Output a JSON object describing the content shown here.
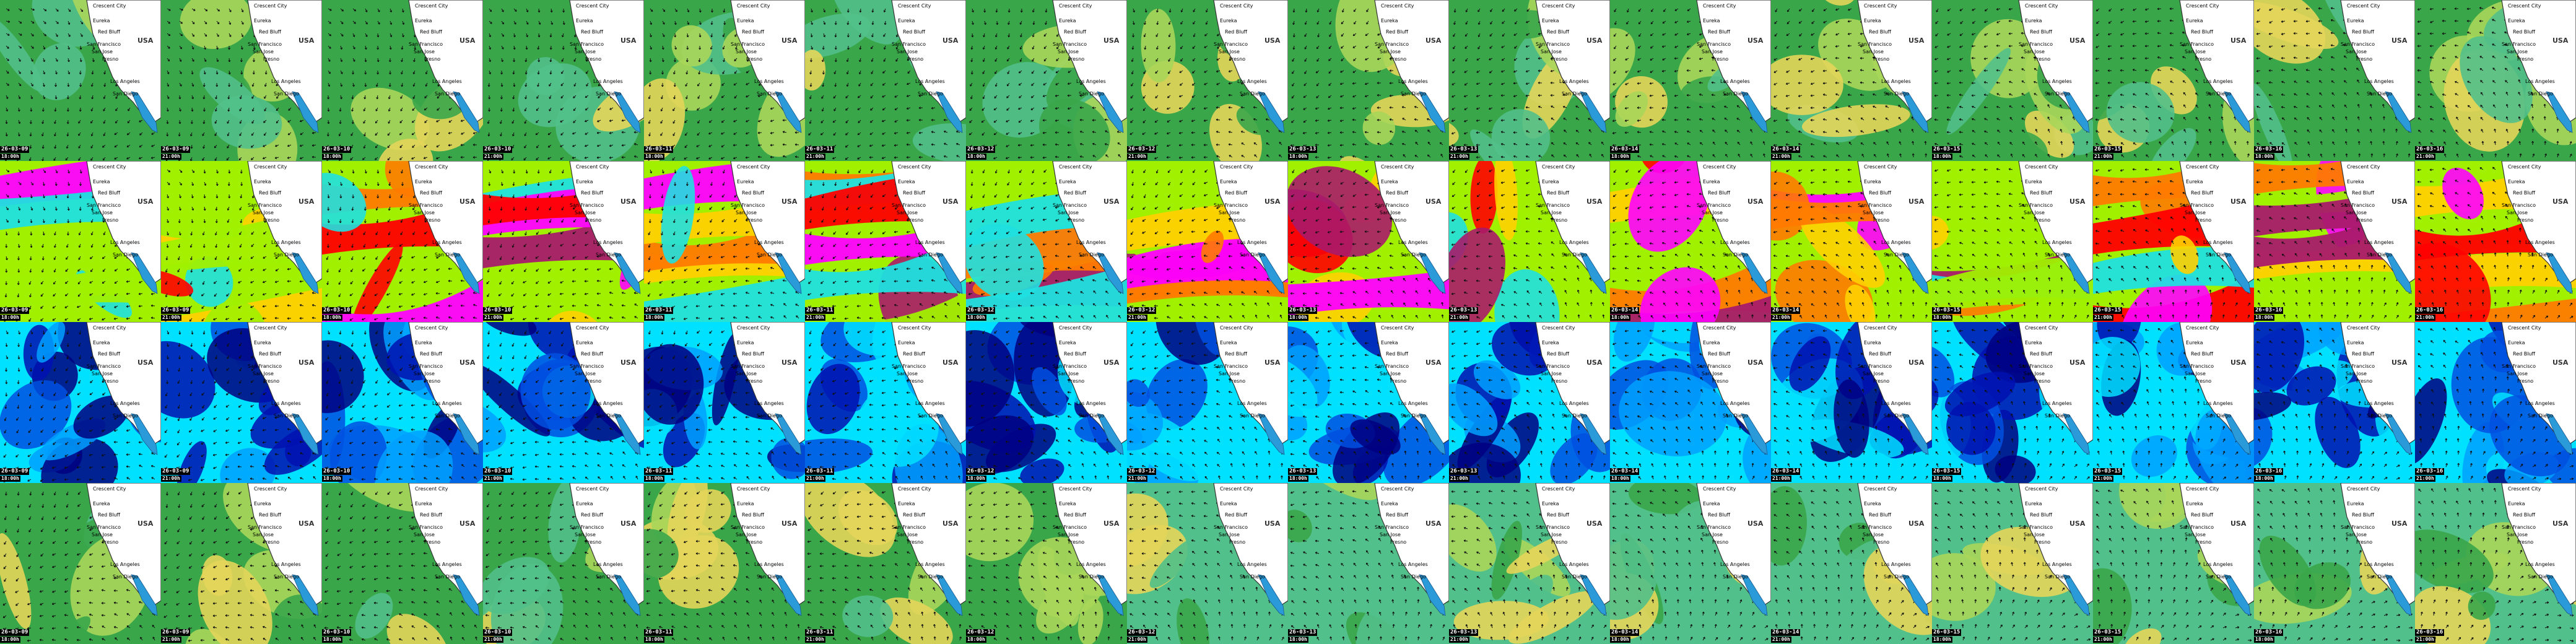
{
  "mosaic": {
    "columns": 16,
    "rows": 4,
    "frames": [
      {
        "date": "26-03-09",
        "time": "18:00h"
      },
      {
        "date": "26-03-09",
        "time": "21:00h"
      },
      {
        "date": "26-03-10",
        "time": "18:00h"
      },
      {
        "date": "26-03-10",
        "time": "21:00h"
      },
      {
        "date": "26-03-11",
        "time": "18:00h"
      },
      {
        "date": "26-03-11",
        "time": "21:00h"
      },
      {
        "date": "26-03-12",
        "time": "18:00h"
      },
      {
        "date": "26-03-12",
        "time": "21:00h"
      },
      {
        "date": "26-03-13",
        "time": "18:00h"
      },
      {
        "date": "26-03-13",
        "time": "21:00h"
      },
      {
        "date": "26-03-14",
        "time": "18:00h"
      },
      {
        "date": "26-03-14",
        "time": "21:00h"
      },
      {
        "date": "26-03-15",
        "time": "18:00h"
      },
      {
        "date": "26-03-15",
        "time": "21:00h"
      },
      {
        "date": "26-03-16",
        "time": "18:00h"
      },
      {
        "date": "26-03-16",
        "time": "21:00h"
      }
    ],
    "place_labels": [
      "Crescent City",
      "Eureka",
      "Red Bluff",
      "San Francisco",
      "San Jose",
      "Fresno",
      "Los Angeles",
      "San Diego",
      "USA"
    ],
    "row_variables": [
      {
        "name": "wind",
        "colors": [
          "#3aa64a",
          "#52c08a",
          "#a8d65a",
          "#e4d55a"
        ]
      },
      {
        "name": "wave-height",
        "colors": [
          "#1fe0e0",
          "#a0f000",
          "#ffd000",
          "#ff7a00",
          "#ff0000",
          "#a81a6a",
          "#ff00ff"
        ]
      },
      {
        "name": "wind-detail",
        "colors": [
          "#00e0ff",
          "#00a0ff",
          "#0050e0",
          "#0010b0",
          "#000080"
        ]
      },
      {
        "name": "wind",
        "colors": [
          "#3aa64a",
          "#52c08a",
          "#a8d65a",
          "#e4d55a"
        ]
      }
    ],
    "land_colors": {
      "land": "#ffffff",
      "lake": "#2a9ad8",
      "coast": "#333333"
    }
  }
}
